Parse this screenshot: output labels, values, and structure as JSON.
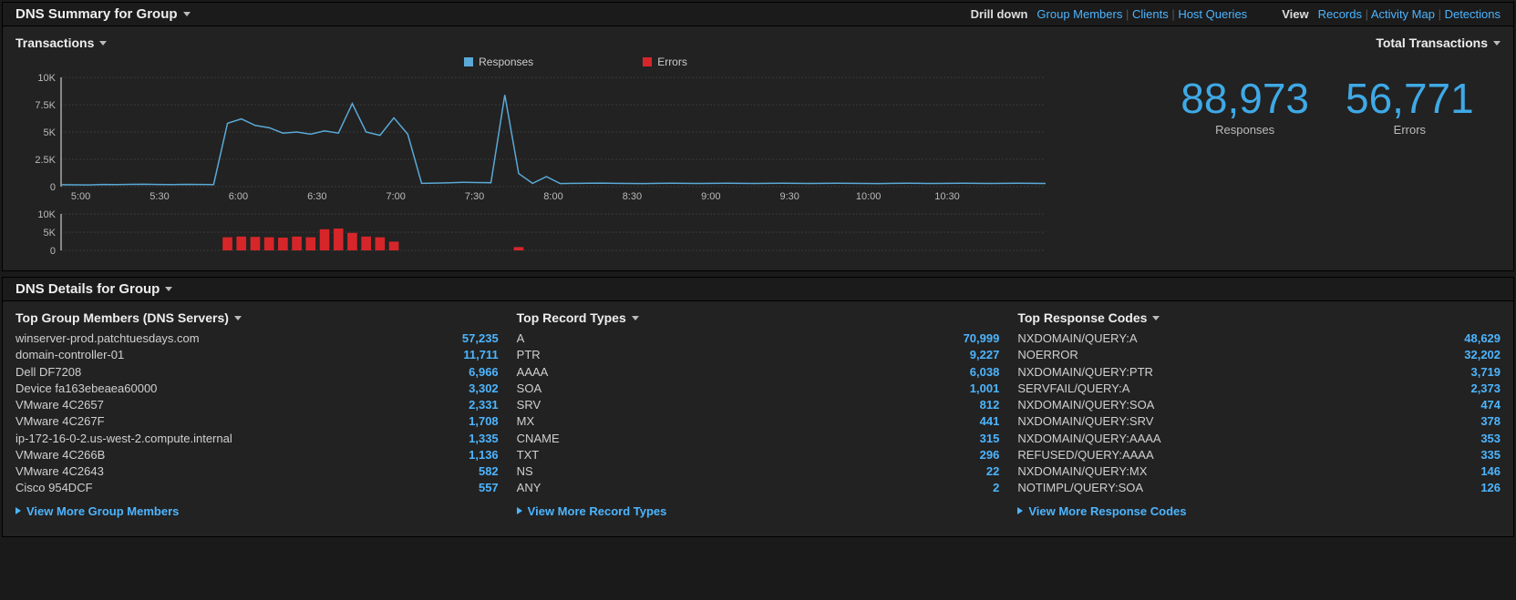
{
  "colors": {
    "responses": "#5aa9d6",
    "errors": "#d6262a",
    "bignum": "#3fa9e6",
    "link": "#4db5ff",
    "bg": "#222222",
    "grid": "#3a3a3a"
  },
  "summary": {
    "title": "DNS Summary for Group",
    "drilldown_label": "Drill down",
    "links": [
      "Group Members",
      "Clients",
      "Host Queries"
    ],
    "view_label": "View",
    "view_links": [
      "Records",
      "Activity Map",
      "Detections"
    ]
  },
  "chart": {
    "title": "Transactions",
    "legend": {
      "responses": "Responses",
      "errors": "Errors"
    },
    "y_ticks": [
      0,
      2500,
      5000,
      7500,
      10000
    ],
    "y_tick_labels": [
      "0",
      "2.5K",
      "5K",
      "7.5K",
      "10K"
    ],
    "y2_ticks": [
      0,
      5000,
      10000
    ],
    "y2_tick_labels": [
      "0",
      "5K",
      "10K"
    ],
    "x_hours": [
      "5:00",
      "5:30",
      "6:00",
      "6:30",
      "7:00",
      "7:30",
      "8:00",
      "8:30",
      "9:00",
      "9:30",
      "10:00",
      "10:30"
    ],
    "responses_series": [
      180,
      170,
      160,
      200,
      190,
      210,
      220,
      200,
      190,
      210,
      200,
      190,
      5800,
      6200,
      5600,
      5400,
      4900,
      5000,
      4800,
      5100,
      4900,
      7600,
      5000,
      4700,
      6300,
      4800,
      300,
      320,
      350,
      400,
      380,
      360,
      8400,
      1200,
      300,
      920,
      280,
      300,
      310,
      320,
      300,
      290,
      280,
      300,
      310,
      300,
      290,
      300,
      310,
      300,
      290,
      300,
      310,
      300,
      290,
      300,
      310,
      300,
      290,
      280,
      300,
      310,
      300,
      290,
      300,
      310,
      300,
      290,
      300,
      310,
      300,
      290
    ],
    "errors_series": [
      0,
      0,
      0,
      0,
      0,
      0,
      0,
      0,
      0,
      0,
      0,
      0,
      3600,
      3800,
      3700,
      3600,
      3500,
      3800,
      3600,
      5800,
      6000,
      4800,
      3800,
      3600,
      2400,
      0,
      0,
      0,
      0,
      0,
      0,
      0,
      0,
      900,
      0,
      0,
      0,
      0,
      0,
      0,
      0,
      0,
      0,
      0,
      0,
      0,
      0,
      0,
      0,
      0,
      0,
      0,
      0,
      0,
      0,
      0,
      0,
      0,
      0,
      0,
      0,
      0,
      0,
      0,
      0,
      0,
      0,
      0,
      0,
      0,
      0,
      0
    ]
  },
  "totals": {
    "title": "Total Transactions",
    "responses_value": "88,973",
    "responses_label": "Responses",
    "errors_value": "56,771",
    "errors_label": "Errors"
  },
  "details": {
    "title": "DNS Details for Group",
    "col1": {
      "title": "Top Group Members (DNS Servers)",
      "items": [
        {
          "name": "winserver-prod.patchtuesdays.com",
          "value": "57,235"
        },
        {
          "name": "domain-controller-01",
          "value": "11,711"
        },
        {
          "name": "Dell DF7208",
          "value": "6,966"
        },
        {
          "name": "Device fa163ebeaea60000",
          "value": "3,302"
        },
        {
          "name": "VMware 4C2657",
          "value": "2,331"
        },
        {
          "name": "VMware 4C267F",
          "value": "1,708"
        },
        {
          "name": "ip-172-16-0-2.us-west-2.compute.internal",
          "value": "1,335"
        },
        {
          "name": "VMware 4C266B",
          "value": "1,136"
        },
        {
          "name": "VMware 4C2643",
          "value": "582"
        },
        {
          "name": "Cisco 954DCF",
          "value": "557"
        }
      ],
      "more": "View More Group Members"
    },
    "col2": {
      "title": "Top Record Types",
      "items": [
        {
          "name": "A",
          "value": "70,999"
        },
        {
          "name": "PTR",
          "value": "9,227"
        },
        {
          "name": "AAAA",
          "value": "6,038"
        },
        {
          "name": "SOA",
          "value": "1,001"
        },
        {
          "name": "SRV",
          "value": "812"
        },
        {
          "name": "MX",
          "value": "441"
        },
        {
          "name": "CNAME",
          "value": "315"
        },
        {
          "name": "TXT",
          "value": "296"
        },
        {
          "name": "NS",
          "value": "22"
        },
        {
          "name": "ANY",
          "value": "2"
        }
      ],
      "more": "View More Record Types"
    },
    "col3": {
      "title": "Top Response Codes",
      "items": [
        {
          "name": "NXDOMAIN/QUERY:A",
          "value": "48,629"
        },
        {
          "name": "NOERROR",
          "value": "32,202"
        },
        {
          "name": "NXDOMAIN/QUERY:PTR",
          "value": "3,719"
        },
        {
          "name": "SERVFAIL/QUERY:A",
          "value": "2,373"
        },
        {
          "name": "NXDOMAIN/QUERY:SOA",
          "value": "474"
        },
        {
          "name": "NXDOMAIN/QUERY:SRV",
          "value": "378"
        },
        {
          "name": "NXDOMAIN/QUERY:AAAA",
          "value": "353"
        },
        {
          "name": "REFUSED/QUERY:AAAA",
          "value": "335"
        },
        {
          "name": "NXDOMAIN/QUERY:MX",
          "value": "146"
        },
        {
          "name": "NOTIMPL/QUERY:SOA",
          "value": "126"
        }
      ],
      "more": "View More Response Codes"
    }
  }
}
